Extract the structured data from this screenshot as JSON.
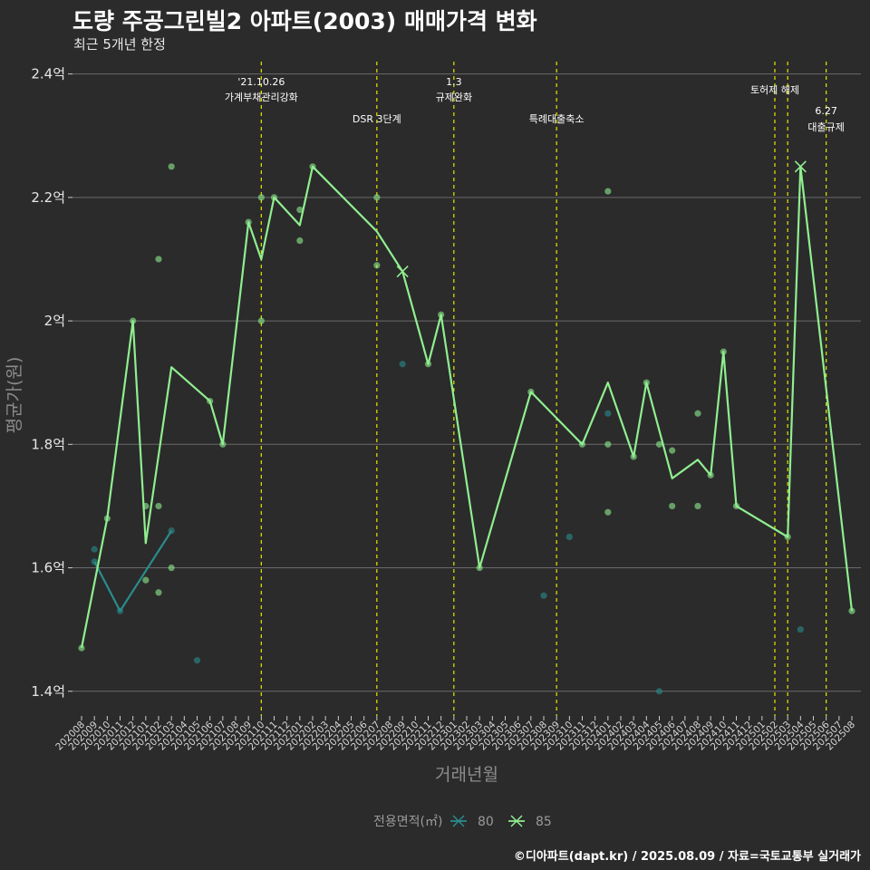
{
  "header": {
    "title": "도량 주공그린빌2 아파트(2003) 매매가격 변화",
    "subtitle": "최근 5개년 한정"
  },
  "caption": "©디아파트(dapt.kr) / 2025.08.09 / 자료=국토교통부 실거래가",
  "chart_data": {
    "type": "line",
    "xlabel": "거래년월",
    "ylabel": "평균가(원)",
    "ylim": [
      1.36,
      2.42
    ],
    "ytick_values": [
      1.4,
      1.6,
      1.8,
      2.0,
      2.2,
      2.4
    ],
    "ytick_labels": [
      "1.4억",
      "1.6억",
      "1.8억",
      "2억",
      "2.2억",
      "2.4억"
    ],
    "grid": true,
    "categories": [
      "202008",
      "202009",
      "202010",
      "202011",
      "202012",
      "202101",
      "202102",
      "202103",
      "202104",
      "202105",
      "202106",
      "202107",
      "202108",
      "202109",
      "202110",
      "202111",
      "202112",
      "202201",
      "202202",
      "202203",
      "202204",
      "202205",
      "202206",
      "202207",
      "202208",
      "202209",
      "202210",
      "202211",
      "202212",
      "202301",
      "202302",
      "202303",
      "202304",
      "202305",
      "202306",
      "202307",
      "202308",
      "202309",
      "202310",
      "202311",
      "202312",
      "202401",
      "202402",
      "202403",
      "202404",
      "202405",
      "202406",
      "202407",
      "202408",
      "202409",
      "202410",
      "202411",
      "202412",
      "202501",
      "202502",
      "202503",
      "202504",
      "202505",
      "202506",
      "202507",
      "202508"
    ],
    "legend": {
      "title": "전용면적(㎡)",
      "position": "bottom"
    },
    "series": [
      {
        "name": "80",
        "color": "#2a8c8c",
        "line": [
          [
            1,
            1.61
          ],
          [
            3,
            1.53
          ],
          [
            7,
            1.66
          ]
        ],
        "points": [
          [
            1,
            1.63
          ],
          [
            1,
            1.61
          ],
          [
            3,
            1.53
          ],
          [
            7,
            1.66
          ],
          [
            9,
            1.45
          ],
          [
            25,
            1.93
          ],
          [
            36,
            1.555
          ],
          [
            38,
            1.65
          ],
          [
            41,
            1.85
          ],
          [
            45,
            1.4
          ],
          [
            56,
            1.5
          ]
        ],
        "highlight": []
      },
      {
        "name": "85",
        "color": "#90ee90",
        "line": [
          [
            0,
            1.47
          ],
          [
            2,
            1.68
          ],
          [
            4,
            2.0
          ],
          [
            5,
            1.64
          ],
          [
            7,
            1.925
          ],
          [
            10,
            1.87
          ],
          [
            11,
            1.8
          ],
          [
            13,
            2.16
          ],
          [
            14,
            2.1
          ],
          [
            15,
            2.2
          ],
          [
            17,
            2.155
          ],
          [
            18,
            2.25
          ],
          [
            23,
            2.145
          ],
          [
            25,
            2.08
          ],
          [
            27,
            1.93
          ],
          [
            28,
            2.01
          ],
          [
            31,
            1.6
          ],
          [
            35,
            1.885
          ],
          [
            39,
            1.8
          ],
          [
            41,
            1.9
          ],
          [
            43,
            1.78
          ],
          [
            44,
            1.9
          ],
          [
            46,
            1.745
          ],
          [
            48,
            1.775
          ],
          [
            49,
            1.75
          ],
          [
            50,
            1.95
          ],
          [
            51,
            1.7
          ],
          [
            55,
            1.65
          ],
          [
            56,
            2.25
          ],
          [
            60,
            1.53
          ]
        ],
        "points": [
          [
            0,
            1.47
          ],
          [
            2,
            1.68
          ],
          [
            4,
            2.0
          ],
          [
            5,
            1.7
          ],
          [
            5,
            1.58
          ],
          [
            6,
            1.7
          ],
          [
            6,
            1.56
          ],
          [
            6,
            2.1
          ],
          [
            7,
            2.25
          ],
          [
            7,
            1.6
          ],
          [
            10,
            1.87
          ],
          [
            11,
            1.8
          ],
          [
            13,
            2.16
          ],
          [
            14,
            2.2
          ],
          [
            14,
            2.0
          ],
          [
            15,
            2.2
          ],
          [
            17,
            2.18
          ],
          [
            17,
            2.13
          ],
          [
            18,
            2.25
          ],
          [
            23,
            2.2
          ],
          [
            23,
            2.09
          ],
          [
            27,
            1.93
          ],
          [
            28,
            2.01
          ],
          [
            31,
            1.6
          ],
          [
            35,
            1.885
          ],
          [
            39,
            1.8
          ],
          [
            41,
            2.21
          ],
          [
            41,
            1.8
          ],
          [
            41,
            1.69
          ],
          [
            43,
            1.78
          ],
          [
            44,
            1.9
          ],
          [
            45,
            1.8
          ],
          [
            46,
            1.79
          ],
          [
            46,
            1.7
          ],
          [
            48,
            1.85
          ],
          [
            48,
            1.7
          ],
          [
            49,
            1.75
          ],
          [
            50,
            1.95
          ],
          [
            51,
            1.7
          ],
          [
            55,
            1.65
          ],
          [
            60,
            1.53
          ]
        ],
        "highlight": [
          [
            25,
            2.08
          ],
          [
            56,
            2.25
          ]
        ]
      }
    ],
    "events": [
      {
        "x": 14,
        "line1": "'21.10.26",
        "line2": "가계부채관리강화",
        "level": "top"
      },
      {
        "x": 23,
        "line1": "",
        "line2": "DSR 3단계",
        "level": "low"
      },
      {
        "x": 29,
        "line1": "1.3",
        "line2": "규제완화",
        "level": "top"
      },
      {
        "x": 37,
        "line1": "",
        "line2": "특례대출축소",
        "level": "low"
      },
      {
        "x": 54,
        "line1": "",
        "line2": "토허제 해제",
        "level": "mid"
      },
      {
        "x": 55,
        "line1": "",
        "line2": "",
        "level": "none"
      },
      {
        "x": 58,
        "line1": "6.27",
        "line2": "대출규제",
        "level": "right"
      }
    ]
  }
}
